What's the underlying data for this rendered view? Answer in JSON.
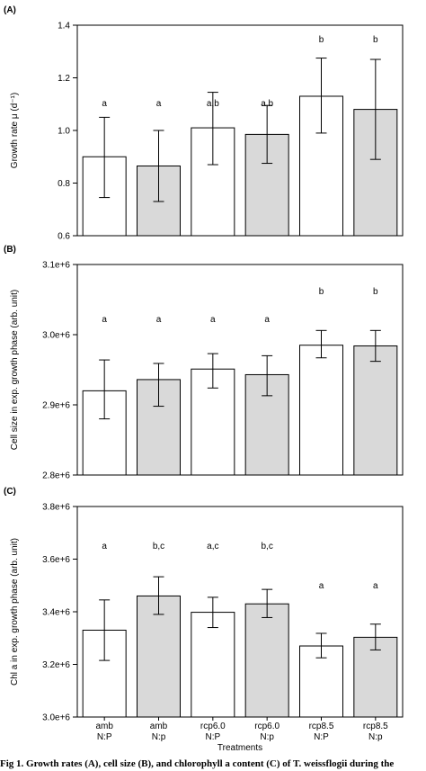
{
  "chart_data": [
    {
      "panel_label": "(A)",
      "type": "bar",
      "ylabel": "Growth rate μ (d⁻¹)",
      "ylim": [
        0.6,
        1.4
      ],
      "yticks": [
        "0.6",
        "0.8",
        "1.0",
        "1.2",
        "1.4"
      ],
      "tick_values": [
        0.6,
        0.8,
        1.0,
        1.2,
        1.4
      ],
      "bars": [
        {
          "value": 0.9,
          "err_low": 0.745,
          "err_high": 1.05,
          "letter": "a",
          "fill": "#ffffff"
        },
        {
          "value": 0.865,
          "err_low": 0.73,
          "err_high": 1.0,
          "letter": "a",
          "fill": "#d9d9d9"
        },
        {
          "value": 1.01,
          "err_low": 0.87,
          "err_high": 1.145,
          "letter": "a,b",
          "fill": "#ffffff"
        },
        {
          "value": 0.985,
          "err_low": 0.875,
          "err_high": 1.095,
          "letter": "a,b",
          "fill": "#d9d9d9"
        },
        {
          "value": 1.13,
          "err_low": 0.99,
          "err_high": 1.275,
          "letter": "b",
          "fill": "#ffffff"
        },
        {
          "value": 1.08,
          "err_low": 0.89,
          "err_high": 1.27,
          "letter": "b",
          "fill": "#d9d9d9"
        }
      ]
    },
    {
      "panel_label": "(B)",
      "type": "bar",
      "ylabel": "Cell size in exp. growth phase (arb. unit)",
      "ylim": [
        2800000,
        3100000
      ],
      "yticks": [
        "2.8e+6",
        "2.9e+6",
        "3.0e+6",
        "3.1e+6"
      ],
      "tick_values": [
        2800000,
        2900000,
        3000000,
        3100000
      ],
      "bars": [
        {
          "value": 2920000,
          "err_low": 2880000,
          "err_high": 2964000,
          "letter": "a",
          "fill": "#ffffff"
        },
        {
          "value": 2936000,
          "err_low": 2898000,
          "err_high": 2959000,
          "letter": "a",
          "fill": "#d9d9d9"
        },
        {
          "value": 2951000,
          "err_low": 2924000,
          "err_high": 2973000,
          "letter": "a",
          "fill": "#ffffff"
        },
        {
          "value": 2943000,
          "err_low": 2913000,
          "err_high": 2970000,
          "letter": "a",
          "fill": "#d9d9d9"
        },
        {
          "value": 2985000,
          "err_low": 2967000,
          "err_high": 3006000,
          "letter": "b",
          "fill": "#ffffff"
        },
        {
          "value": 2984000,
          "err_low": 2962000,
          "err_high": 3006000,
          "letter": "b",
          "fill": "#d9d9d9"
        }
      ]
    },
    {
      "panel_label": "(C)",
      "type": "bar",
      "ylabel": "Chl a in exp. growth phase (arb. unit)",
      "xlabel": "Treatments",
      "ylim": [
        3000000,
        3800000
      ],
      "yticks": [
        "3.0e+6",
        "3.2e+6",
        "3.4e+6",
        "3.6e+6",
        "3.8e+6"
      ],
      "tick_values": [
        3000000,
        3200000,
        3400000,
        3600000,
        3800000
      ],
      "bars": [
        {
          "value": 3330000,
          "err_low": 3215000,
          "err_high": 3445000,
          "letter": "a",
          "fill": "#ffffff"
        },
        {
          "value": 3460000,
          "err_low": 3390000,
          "err_high": 3533000,
          "letter": "b,c",
          "fill": "#d9d9d9"
        },
        {
          "value": 3398000,
          "err_low": 3340000,
          "err_high": 3455000,
          "letter": "a,c",
          "fill": "#ffffff"
        },
        {
          "value": 3430000,
          "err_low": 3378000,
          "err_high": 3485000,
          "letter": "b,c",
          "fill": "#d9d9d9"
        },
        {
          "value": 3270000,
          "err_low": 3225000,
          "err_high": 3318000,
          "letter": "a",
          "fill": "#ffffff"
        },
        {
          "value": 3303000,
          "err_low": 3255000,
          "err_high": 3353000,
          "letter": "a",
          "fill": "#d9d9d9"
        }
      ]
    }
  ],
  "categories": [
    {
      "line1": "amb",
      "line2": "N:P"
    },
    {
      "line1": "amb",
      "line2": "N:p"
    },
    {
      "line1": "rcp6.0",
      "line2": "N:P"
    },
    {
      "line1": "rcp6.0",
      "line2": "N:p"
    },
    {
      "line1": "rcp8.5",
      "line2": "N:P"
    },
    {
      "line1": "rcp8.5",
      "line2": "N:p"
    }
  ],
  "caption": "Fig 1. Growth rates (A), cell size (B), and chlorophyll a content (C) of T. weissflogii during the"
}
